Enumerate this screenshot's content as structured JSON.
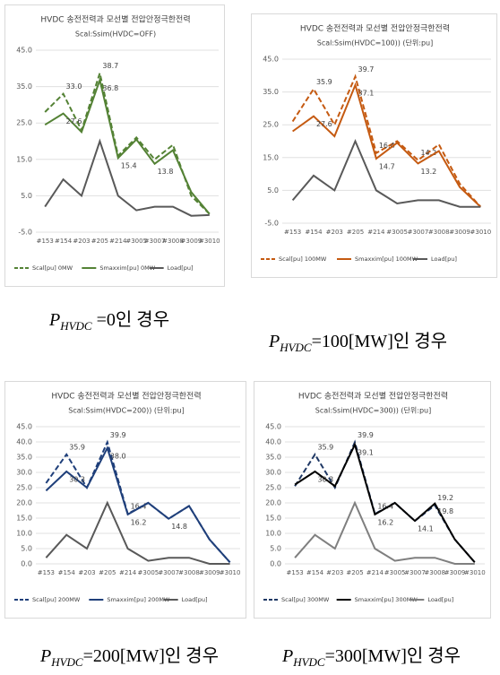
{
  "chart_data": [
    {
      "type": "line",
      "title": "HVDC 송전전력과 모선별 전압안정극한전력",
      "subtitle": "Scal:Ssim(HVDC=OFF)",
      "categories": [
        "#153",
        "#154",
        "#203",
        "#205",
        "#214",
        "#3005",
        "#3007",
        "#3008",
        "#3009",
        "#3010"
      ],
      "ylim": [
        -5,
        45
      ],
      "yticks": [
        {
          "value": -5,
          "label": "-5.0"
        },
        {
          "value": 5,
          "label": "5.0"
        },
        {
          "value": 15,
          "label": "15.0"
        },
        {
          "value": 25,
          "label": "25.0"
        },
        {
          "value": 35,
          "label": "35.0"
        },
        {
          "value": 45,
          "label": "45.0"
        }
      ],
      "grid": true,
      "legend": "bottom",
      "series": [
        {
          "name": "Scal[pu] 0MW",
          "color": "#548235",
          "dashed": true,
          "values": [
            28,
            33,
            23,
            38.7,
            16,
            21,
            15,
            19,
            5,
            0
          ],
          "value_labels": [
            null,
            "33.0",
            null,
            "38.7",
            null,
            null,
            null,
            null,
            null,
            null
          ]
        },
        {
          "name": "Smaxxim[pu] 0MW",
          "color": "#548235",
          "dashed": false,
          "values": [
            24.5,
            27.6,
            22.5,
            36.8,
            15.4,
            20.5,
            13.8,
            17.5,
            6,
            0
          ],
          "value_labels": [
            null,
            "27.6",
            null,
            "36.8",
            "15.4",
            null,
            "13.8",
            null,
            null,
            null
          ]
        },
        {
          "name": "Load[pu]",
          "color": "#595959",
          "dashed": false,
          "values": [
            2,
            9.5,
            5,
            20,
            5,
            1,
            2,
            2,
            -0.5,
            -0.3
          ]
        }
      ],
      "caption": {
        "symbol": "P",
        "subscript": "HVDC",
        "text": " =0인 경우"
      }
    },
    {
      "type": "line",
      "title": "HVDC 송전전력과 모선별 전압안정극한전력",
      "subtitle": "Scal:Ssim(HVDC=100)) (단위:pu]",
      "categories": [
        "#153",
        "#154",
        "#203",
        "#205",
        "#214",
        "#3005",
        "#3007",
        "#3008",
        "#3009",
        "#3010"
      ],
      "ylim": [
        -5,
        45
      ],
      "yticks": [
        {
          "value": -5,
          "label": "-5.0"
        },
        {
          "value": 5,
          "label": "5.0"
        },
        {
          "value": 15,
          "label": "15.0"
        },
        {
          "value": 25,
          "label": "25.0"
        },
        {
          "value": 35,
          "label": "35.0"
        },
        {
          "value": 45,
          "label": "45.0"
        }
      ],
      "grid": true,
      "legend": "bottom",
      "series": [
        {
          "name": "Scal[pu] 100MW",
          "color": "#c55a11",
          "dashed": true,
          "values": [
            26,
            35.9,
            25,
            39.7,
            16.4,
            20,
            14.2,
            19,
            7,
            0
          ],
          "value_labels": [
            null,
            "35.9",
            null,
            "39.7",
            "16.4",
            null,
            "14.2",
            null,
            null,
            null
          ]
        },
        {
          "name": "Smaxxim[pu] 100MW",
          "color": "#c55a11",
          "dashed": false,
          "values": [
            23,
            27.6,
            21.5,
            37.1,
            14.7,
            19.5,
            13.2,
            17,
            6,
            0
          ],
          "value_labels": [
            null,
            "27.6",
            null,
            "37.1",
            "14.7",
            null,
            "13.2",
            null,
            null,
            null
          ]
        },
        {
          "name": "Load[pu]",
          "color": "#595959",
          "dashed": false,
          "values": [
            2,
            9.5,
            5,
            20,
            5,
            1,
            2,
            2,
            0,
            0
          ]
        }
      ],
      "caption": {
        "symbol": "P",
        "subscript": "HVDC",
        "text": "=100[MW]인 경우"
      }
    },
    {
      "type": "line",
      "title": "HVDC 송전전력과 모선별 전압안정극한전력",
      "subtitle": "Scal:Ssim(HVDC=200)) (단위:pu]",
      "categories": [
        "#153",
        "#154",
        "#203",
        "#205",
        "#214",
        "#3005",
        "#3007",
        "#3008",
        "#3009",
        "#3010"
      ],
      "ylim": [
        0,
        45
      ],
      "yticks": [
        {
          "value": 0,
          "label": "0.0"
        },
        {
          "value": 5,
          "label": "5.0"
        },
        {
          "value": 10,
          "label": "10.0"
        },
        {
          "value": 15,
          "label": "15.0"
        },
        {
          "value": 20,
          "label": "20.0"
        },
        {
          "value": 25,
          "label": "25.0"
        },
        {
          "value": 30,
          "label": "30.0"
        },
        {
          "value": 35,
          "label": "35.0"
        },
        {
          "value": 40,
          "label": "40.0"
        },
        {
          "value": 45,
          "label": "45.0"
        }
      ],
      "grid": true,
      "legend": "bottom",
      "series": [
        {
          "name": "Scal[pu] 200MW",
          "color": "#1f3f7a",
          "dashed": true,
          "values": [
            26.5,
            35.9,
            25,
            39.9,
            16.4,
            20,
            14.8,
            19,
            8,
            0.5
          ],
          "value_labels": [
            null,
            "35.9",
            null,
            "39.9",
            "16.4",
            null,
            null,
            null,
            null,
            null
          ]
        },
        {
          "name": "Smaxxim[pu] 200MW",
          "color": "#1f3f7a",
          "dashed": false,
          "values": [
            24,
            30.3,
            25,
            38,
            16.2,
            20,
            14.8,
            19,
            8,
            0.5
          ],
          "value_labels": [
            null,
            "30.3",
            null,
            "38.0",
            "16.2",
            null,
            "14.8",
            null,
            null,
            null
          ]
        },
        {
          "name": "Load[pu]",
          "color": "#595959",
          "dashed": false,
          "values": [
            2,
            9.5,
            5,
            20,
            5,
            1,
            2,
            2,
            0,
            0
          ]
        }
      ],
      "caption": {
        "symbol": "P",
        "subscript": "HVDC",
        "text": "=200[MW]인 경우"
      }
    },
    {
      "type": "line",
      "title": "HVDC 송전전력과 모선별 전압안정극한전력",
      "subtitle": "Scal:Ssim(HVDC=300)) (단위:pu]",
      "categories": [
        "#153",
        "#154",
        "#203",
        "#205",
        "#214",
        "#3005",
        "#3007",
        "#3008",
        "#3009",
        "#3010"
      ],
      "ylim": [
        0,
        45
      ],
      "yticks": [
        {
          "value": 0,
          "label": "0.0"
        },
        {
          "value": 5,
          "label": "5.0"
        },
        {
          "value": 10,
          "label": "10.0"
        },
        {
          "value": 15,
          "label": "15.0"
        },
        {
          "value": 20,
          "label": "20.0"
        },
        {
          "value": 25,
          "label": "25.0"
        },
        {
          "value": 30,
          "label": "30.0"
        },
        {
          "value": 35,
          "label": "35.0"
        },
        {
          "value": 40,
          "label": "40.0"
        },
        {
          "value": 45,
          "label": "45.0"
        }
      ],
      "grid": true,
      "legend": "bottom",
      "series": [
        {
          "name": "Scal[pu] 300MW",
          "color": "#1f3864",
          "dashed": true,
          "values": [
            25.5,
            35.9,
            25,
            39.9,
            16.4,
            20,
            14.1,
            19.2,
            8,
            0.5
          ],
          "value_labels": [
            null,
            "35.9",
            null,
            "39.9",
            "16.4",
            null,
            null,
            "19.2",
            null,
            null
          ]
        },
        {
          "name": "Smaxxim[pu] 300MW",
          "color": "#000000",
          "dashed": false,
          "values": [
            26,
            30.3,
            25.5,
            39.1,
            16.2,
            20,
            14.1,
            19.8,
            8,
            0.5
          ],
          "value_labels": [
            null,
            "30.3",
            null,
            "39.1",
            "16.2",
            null,
            "14.1",
            "19.8",
            null,
            null
          ]
        },
        {
          "name": "Load[pu]",
          "color": "#7f7f7f",
          "dashed": false,
          "values": [
            2,
            9.5,
            5,
            20,
            5,
            1,
            2,
            2,
            0,
            0
          ]
        }
      ],
      "caption": {
        "symbol": "P",
        "subscript": "HVDC",
        "text": "=300[MW]인 경우"
      }
    }
  ]
}
